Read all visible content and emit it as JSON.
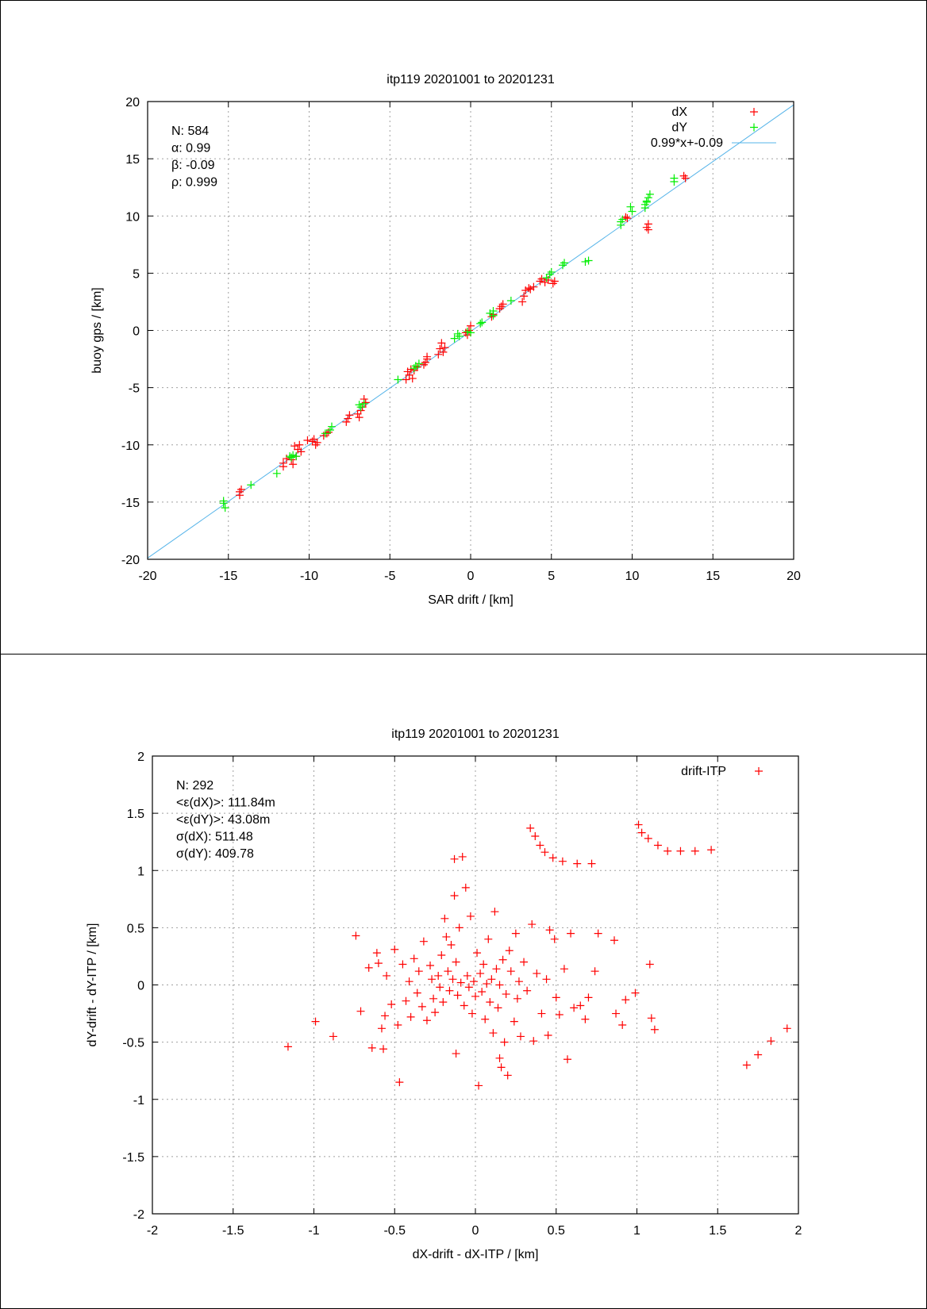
{
  "chart_data": [
    {
      "type": "scatter",
      "title": "itp119 20201001 to 20201231",
      "xlabel": "SAR drift / [km]",
      "ylabel": "buoy gps / [km]",
      "xlim": [
        -20,
        20
      ],
      "ylim": [
        -20,
        20
      ],
      "xticks": [
        -20,
        -15,
        -10,
        -5,
        0,
        5,
        10,
        15,
        20
      ],
      "yticks": [
        -20,
        -15,
        -10,
        -5,
        0,
        5,
        10,
        15,
        20
      ],
      "grid": true,
      "legend_position": "top-right",
      "stats": [
        "N: 584",
        "α: 0.99",
        "β: -0.09",
        "ρ: 0.999"
      ],
      "fit_line": {
        "name": "0.99*x+-0.09",
        "slope": 0.99,
        "intercept": -0.09,
        "color": "#56b4e9"
      },
      "series": [
        {
          "name": "dX",
          "color": "#ff0000",
          "points": [
            [
              -14.3,
              -14.4
            ],
            [
              -14.2,
              -13.9
            ],
            [
              -14.3,
              -14.1
            ],
            [
              -11.6,
              -11.6
            ],
            [
              -11.4,
              -11.2
            ],
            [
              -11.6,
              -11.9
            ],
            [
              -11.0,
              -11.7
            ],
            [
              -11.1,
              -11.3
            ],
            [
              -10.8,
              -11.0
            ],
            [
              -10.7,
              -10.4
            ],
            [
              -10.5,
              -10.6
            ],
            [
              -10.9,
              -10.1
            ],
            [
              -10.6,
              -10.0
            ],
            [
              -10.1,
              -9.6
            ],
            [
              -9.8,
              -9.7
            ],
            [
              -9.6,
              -10.0
            ],
            [
              -9.7,
              -9.5
            ],
            [
              -9.5,
              -9.8
            ],
            [
              -9.1,
              -9.2
            ],
            [
              -8.9,
              -9.0
            ],
            [
              -8.8,
              -8.9
            ],
            [
              -7.6,
              -7.7
            ],
            [
              -7.7,
              -8.0
            ],
            [
              -7.5,
              -7.4
            ],
            [
              -7.0,
              -7.3
            ],
            [
              -6.9,
              -7.6
            ],
            [
              -6.7,
              -6.7
            ],
            [
              -6.5,
              -6.3
            ],
            [
              -6.6,
              -6.0
            ],
            [
              -6.8,
              -7.0
            ],
            [
              -3.8,
              -3.9
            ],
            [
              -3.7,
              -3.4
            ],
            [
              -3.9,
              -3.6
            ],
            [
              -3.5,
              -3.5
            ],
            [
              -4.0,
              -4.3
            ],
            [
              -3.6,
              -4.2
            ],
            [
              -3.3,
              -3.2
            ],
            [
              -2.9,
              -3.0
            ],
            [
              -2.7,
              -2.5
            ],
            [
              -2.8,
              -2.8
            ],
            [
              -2.7,
              -2.3
            ],
            [
              -2.0,
              -2.1
            ],
            [
              -1.9,
              -1.6
            ],
            [
              -1.8,
              -1.1
            ],
            [
              -1.6,
              -1.5
            ],
            [
              -1.7,
              -1.9
            ],
            [
              -0.2,
              -0.4
            ],
            [
              -0.1,
              0.0
            ],
            [
              0.0,
              0.4
            ],
            [
              -0.3,
              -0.2
            ],
            [
              1.3,
              1.2
            ],
            [
              1.4,
              1.4
            ],
            [
              1.9,
              2.1
            ],
            [
              2.0,
              2.3
            ],
            [
              1.8,
              1.9
            ],
            [
              3.3,
              3.0
            ],
            [
              3.4,
              3.5
            ],
            [
              3.2,
              2.5
            ],
            [
              3.6,
              3.7
            ],
            [
              3.7,
              3.6
            ],
            [
              3.9,
              3.8
            ],
            [
              4.3,
              4.3
            ],
            [
              4.6,
              4.2
            ],
            [
              4.4,
              4.5
            ],
            [
              4.8,
              4.4
            ],
            [
              5.1,
              4.1
            ],
            [
              5.2,
              4.3
            ],
            [
              9.6,
              9.9
            ],
            [
              9.7,
              9.8
            ],
            [
              11.0,
              8.8
            ],
            [
              11.0,
              9.3
            ],
            [
              10.9,
              9.0
            ],
            [
              13.3,
              13.3
            ],
            [
              13.2,
              13.5
            ]
          ]
        },
        {
          "name": "dY",
          "color": "#00ee00",
          "points": [
            [
              -15.3,
              -15.1
            ],
            [
              -15.2,
              -15.5
            ],
            [
              -15.3,
              -14.9
            ],
            [
              -13.6,
              -13.5
            ],
            [
              -12.0,
              -12.5
            ],
            [
              -11.2,
              -11.0
            ],
            [
              -11.0,
              -10.9
            ],
            [
              -10.8,
              -11.0
            ],
            [
              -11.1,
              -11.1
            ],
            [
              -9.0,
              -9.0
            ],
            [
              -8.6,
              -8.4
            ],
            [
              -8.7,
              -8.7
            ],
            [
              -6.9,
              -6.5
            ],
            [
              -6.8,
              -6.7
            ],
            [
              -6.6,
              -6.4
            ],
            [
              -4.5,
              -4.3
            ],
            [
              -3.5,
              -3.3
            ],
            [
              -3.2,
              -2.9
            ],
            [
              -3.4,
              -3.1
            ],
            [
              -1.0,
              -0.7
            ],
            [
              -0.7,
              -0.5
            ],
            [
              -0.8,
              -0.3
            ],
            [
              -0.2,
              -0.1
            ],
            [
              0.0,
              -0.2
            ],
            [
              0.6,
              0.6
            ],
            [
              0.7,
              0.7
            ],
            [
              1.2,
              1.5
            ],
            [
              1.4,
              1.7
            ],
            [
              1.4,
              1.3
            ],
            [
              2.5,
              2.6
            ],
            [
              4.7,
              4.6
            ],
            [
              4.9,
              4.9
            ],
            [
              5.0,
              5.1
            ],
            [
              5.7,
              5.7
            ],
            [
              5.8,
              5.9
            ],
            [
              7.1,
              6.0
            ],
            [
              7.3,
              6.1
            ],
            [
              9.3,
              9.2
            ],
            [
              9.4,
              9.7
            ],
            [
              9.3,
              9.5
            ],
            [
              10.0,
              10.4
            ],
            [
              9.9,
              10.8
            ],
            [
              10.8,
              10.7
            ],
            [
              10.8,
              11.0
            ],
            [
              10.9,
              11.3
            ],
            [
              11.0,
              11.6
            ],
            [
              11.1,
              11.9
            ],
            [
              10.9,
              11.2
            ],
            [
              12.6,
              13.0
            ],
            [
              12.6,
              13.3
            ]
          ]
        }
      ]
    },
    {
      "type": "scatter",
      "title": "itp119 20201001 to 20201231",
      "xlabel": "dX-drift - dX-ITP / [km]",
      "ylabel": "dY-drift - dY-ITP / [km]",
      "xlim": [
        -2,
        2
      ],
      "ylim": [
        -2,
        2
      ],
      "xticks": [
        -2,
        -1.5,
        -1,
        -0.5,
        0,
        0.5,
        1,
        1.5,
        2
      ],
      "yticks": [
        -2,
        -1.5,
        -1,
        -0.5,
        0,
        0.5,
        1,
        1.5,
        2
      ],
      "grid": true,
      "legend_position": "top-right",
      "stats": [
        "N: 292",
        "<ε(dX)>:  111.84m",
        "<ε(dY)>: 43.08m",
        "σ(dX):  511.48",
        "σ(dY):  409.78"
      ],
      "series": [
        {
          "name": "drift-ITP",
          "color": "#ff0000",
          "points": [
            [
              -1.16,
              -0.54
            ],
            [
              -0.99,
              -0.32
            ],
            [
              -0.88,
              -0.45
            ],
            [
              -0.74,
              0.43
            ],
            [
              -0.71,
              -0.23
            ],
            [
              -0.66,
              0.15
            ],
            [
              -0.64,
              -0.55
            ],
            [
              -0.61,
              0.28
            ],
            [
              -0.6,
              0.19
            ],
            [
              -0.58,
              -0.38
            ],
            [
              -0.57,
              -0.56
            ],
            [
              -0.56,
              -0.27
            ],
            [
              -0.55,
              0.08
            ],
            [
              -0.52,
              -0.17
            ],
            [
              -0.5,
              0.31
            ],
            [
              -0.48,
              -0.35
            ],
            [
              -0.47,
              -0.85
            ],
            [
              -0.45,
              0.18
            ],
            [
              -0.43,
              -0.14
            ],
            [
              -0.41,
              0.03
            ],
            [
              -0.4,
              -0.28
            ],
            [
              -0.38,
              0.23
            ],
            [
              -0.36,
              -0.07
            ],
            [
              -0.35,
              0.12
            ],
            [
              -0.33,
              -0.19
            ],
            [
              -0.32,
              0.38
            ],
            [
              -0.3,
              -0.31
            ],
            [
              -0.28,
              0.17
            ],
            [
              -0.27,
              0.05
            ],
            [
              -0.26,
              -0.12
            ],
            [
              -0.25,
              -0.24
            ],
            [
              -0.23,
              0.08
            ],
            [
              -0.22,
              -0.02
            ],
            [
              -0.21,
              0.26
            ],
            [
              -0.2,
              -0.15
            ],
            [
              -0.19,
              0.58
            ],
            [
              -0.18,
              0.42
            ],
            [
              -0.17,
              0.12
            ],
            [
              -0.16,
              -0.05
            ],
            [
              -0.15,
              0.35
            ],
            [
              -0.14,
              0.05
            ],
            [
              -0.13,
              1.1
            ],
            [
              -0.13,
              0.78
            ],
            [
              -0.12,
              -0.6
            ],
            [
              -0.12,
              0.2
            ],
            [
              -0.11,
              -0.09
            ],
            [
              -0.1,
              0.5
            ],
            [
              -0.09,
              0.02
            ],
            [
              -0.08,
              1.12
            ],
            [
              -0.07,
              -0.18
            ],
            [
              -0.06,
              0.85
            ],
            [
              -0.05,
              0.08
            ],
            [
              -0.04,
              -0.02
            ],
            [
              -0.03,
              0.6
            ],
            [
              -0.02,
              -0.25
            ],
            [
              -0.01,
              0.03
            ],
            [
              0.0,
              -0.1
            ],
            [
              0.01,
              0.28
            ],
            [
              0.02,
              -0.88
            ],
            [
              0.03,
              0.1
            ],
            [
              0.04,
              -0.06
            ],
            [
              0.05,
              0.18
            ],
            [
              0.06,
              -0.3
            ],
            [
              0.07,
              0.01
            ],
            [
              0.08,
              0.4
            ],
            [
              0.09,
              -0.15
            ],
            [
              0.1,
              0.05
            ],
            [
              0.11,
              -0.42
            ],
            [
              0.12,
              0.64
            ],
            [
              0.13,
              0.14
            ],
            [
              0.14,
              -0.2
            ],
            [
              0.15,
              -0.64
            ],
            [
              0.15,
              0.0
            ],
            [
              0.16,
              -0.72
            ],
            [
              0.17,
              0.22
            ],
            [
              0.18,
              -0.5
            ],
            [
              0.19,
              -0.08
            ],
            [
              0.2,
              -0.79
            ],
            [
              0.21,
              0.3
            ],
            [
              0.22,
              0.12
            ],
            [
              0.24,
              -0.32
            ],
            [
              0.25,
              0.45
            ],
            [
              0.26,
              -0.12
            ],
            [
              0.27,
              0.03
            ],
            [
              0.28,
              -0.45
            ],
            [
              0.3,
              0.2
            ],
            [
              0.32,
              -0.05
            ],
            [
              0.34,
              1.37
            ],
            [
              0.35,
              0.53
            ],
            [
              0.36,
              -0.49
            ],
            [
              0.37,
              1.3
            ],
            [
              0.38,
              0.1
            ],
            [
              0.4,
              1.22
            ],
            [
              0.41,
              -0.25
            ],
            [
              0.43,
              1.16
            ],
            [
              0.44,
              0.05
            ],
            [
              0.45,
              -0.44
            ],
            [
              0.46,
              0.48
            ],
            [
              0.48,
              1.11
            ],
            [
              0.49,
              0.4
            ],
            [
              0.5,
              -0.11
            ],
            [
              0.52,
              -0.26
            ],
            [
              0.54,
              1.08
            ],
            [
              0.55,
              0.14
            ],
            [
              0.57,
              -0.65
            ],
            [
              0.59,
              0.45
            ],
            [
              0.61,
              -0.2
            ],
            [
              0.63,
              1.06
            ],
            [
              0.65,
              -0.18
            ],
            [
              0.68,
              -0.3
            ],
            [
              0.7,
              -0.11
            ],
            [
              0.72,
              1.06
            ],
            [
              0.74,
              0.12
            ],
            [
              0.76,
              0.45
            ],
            [
              0.86,
              0.39
            ],
            [
              0.87,
              -0.25
            ],
            [
              0.91,
              -0.35
            ],
            [
              0.93,
              -0.13
            ],
            [
              0.99,
              -0.07
            ],
            [
              1.01,
              1.4
            ],
            [
              1.03,
              1.33
            ],
            [
              1.07,
              1.28
            ],
            [
              1.08,
              0.18
            ],
            [
              1.09,
              -0.29
            ],
            [
              1.11,
              -0.39
            ],
            [
              1.13,
              1.22
            ],
            [
              1.19,
              1.17
            ],
            [
              1.27,
              1.17
            ],
            [
              1.36,
              1.17
            ],
            [
              1.46,
              1.18
            ],
            [
              1.68,
              -0.7
            ],
            [
              1.75,
              -0.61
            ],
            [
              1.83,
              -0.49
            ],
            [
              1.93,
              -0.38
            ]
          ]
        }
      ]
    }
  ]
}
